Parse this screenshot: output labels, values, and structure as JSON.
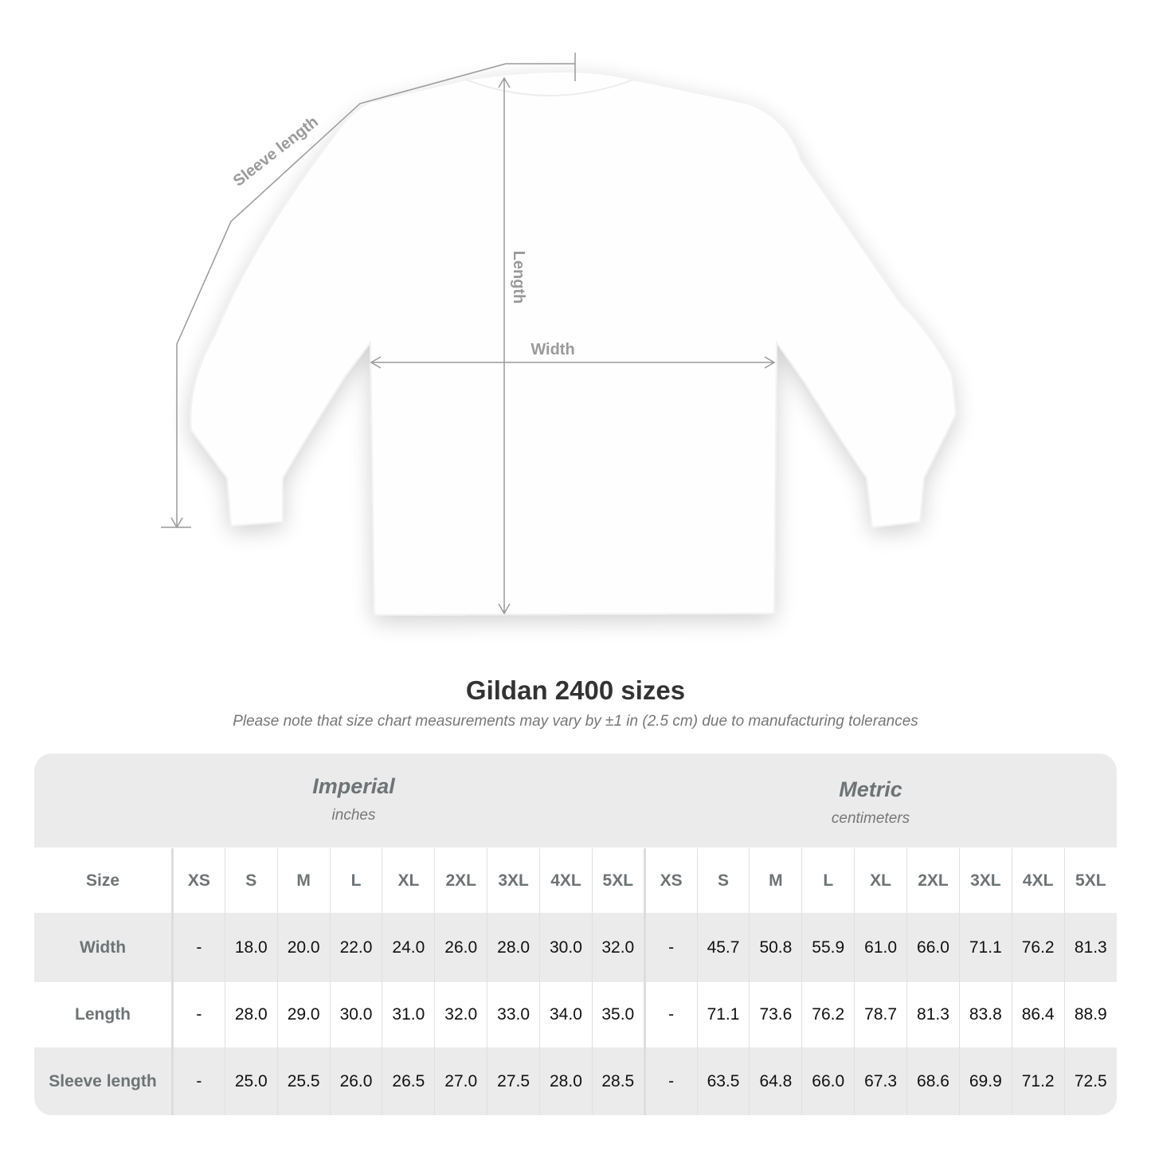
{
  "diagram": {
    "labels": {
      "sleeve": "Sleeve length",
      "length": "Length",
      "width": "Width"
    },
    "line_color": "#9a9a9a"
  },
  "title": "Gildan 2400 sizes",
  "note": "Please note that size chart measurements may vary by ±1 in (2.5 cm) due to manufacturing tolerances",
  "table": {
    "imperial": {
      "name": "Imperial",
      "unit": "inches"
    },
    "metric": {
      "name": "Metric",
      "unit": "centimeters"
    },
    "size_label": "Size",
    "sizes": [
      "XS",
      "S",
      "M",
      "L",
      "XL",
      "2XL",
      "3XL",
      "4XL",
      "5XL"
    ],
    "rows": [
      {
        "label": "Width",
        "imperial": [
          "-",
          "18.0",
          "20.0",
          "22.0",
          "24.0",
          "26.0",
          "28.0",
          "30.0",
          "32.0"
        ],
        "metric": [
          "-",
          "45.7",
          "50.8",
          "55.9",
          "61.0",
          "66.0",
          "71.1",
          "76.2",
          "81.3"
        ]
      },
      {
        "label": "Length",
        "imperial": [
          "-",
          "28.0",
          "29.0",
          "30.0",
          "31.0",
          "32.0",
          "33.0",
          "34.0",
          "35.0"
        ],
        "metric": [
          "-",
          "71.1",
          "73.6",
          "76.2",
          "78.7",
          "81.3",
          "83.8",
          "86.4",
          "88.9"
        ]
      },
      {
        "label": "Sleeve length",
        "imperial": [
          "-",
          "25.0",
          "25.5",
          "26.0",
          "26.5",
          "27.0",
          "27.5",
          "28.0",
          "28.5"
        ],
        "metric": [
          "-",
          "63.5",
          "64.8",
          "66.0",
          "67.3",
          "68.6",
          "69.9",
          "71.2",
          "72.5"
        ]
      }
    ]
  }
}
